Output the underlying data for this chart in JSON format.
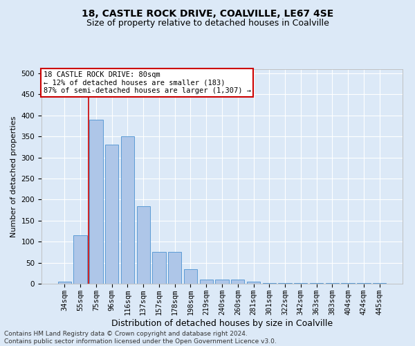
{
  "title1": "18, CASTLE ROCK DRIVE, COALVILLE, LE67 4SE",
  "title2": "Size of property relative to detached houses in Coalville",
  "xlabel": "Distribution of detached houses by size in Coalville",
  "ylabel": "Number of detached properties",
  "footnote": "Contains HM Land Registry data © Crown copyright and database right 2024.\nContains public sector information licensed under the Open Government Licence v3.0.",
  "categories": [
    "34sqm",
    "55sqm",
    "75sqm",
    "96sqm",
    "116sqm",
    "137sqm",
    "157sqm",
    "178sqm",
    "198sqm",
    "219sqm",
    "240sqm",
    "260sqm",
    "281sqm",
    "301sqm",
    "322sqm",
    "342sqm",
    "363sqm",
    "383sqm",
    "404sqm",
    "424sqm",
    "445sqm"
  ],
  "values": [
    5,
    115,
    390,
    330,
    350,
    185,
    75,
    75,
    35,
    10,
    10,
    10,
    5,
    2,
    2,
    2,
    2,
    2,
    2,
    2,
    2
  ],
  "bar_color": "#aec6e8",
  "bar_edge_color": "#5b9bd5",
  "redline_index": 1.5,
  "annotation_text": "18 CASTLE ROCK DRIVE: 80sqm\n← 12% of detached houses are smaller (183)\n87% of semi-detached houses are larger (1,307) →",
  "annotation_box_color": "#ffffff",
  "annotation_box_edge": "#cc0000",
  "redline_color": "#cc0000",
  "ylim": [
    0,
    510
  ],
  "yticks": [
    0,
    50,
    100,
    150,
    200,
    250,
    300,
    350,
    400,
    450,
    500
  ],
  "bg_color": "#dce9f7",
  "plot_bg": "#dce9f7",
  "grid_color": "#ffffff",
  "title1_fontsize": 10,
  "title2_fontsize": 9,
  "xlabel_fontsize": 9,
  "ylabel_fontsize": 8,
  "tick_fontsize": 7.5,
  "annotation_fontsize": 7.5,
  "footnote_fontsize": 6.5
}
